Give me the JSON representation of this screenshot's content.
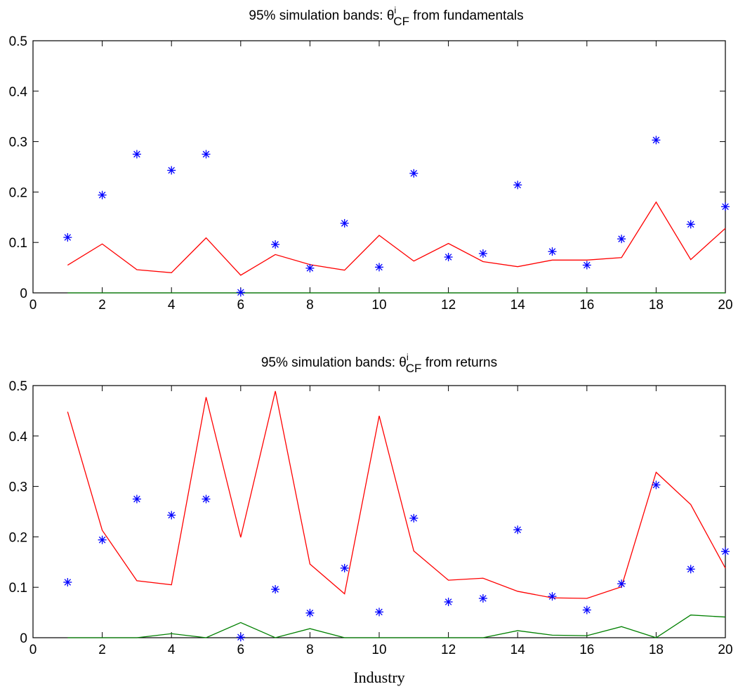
{
  "figure": {
    "xlabel": "Industry"
  },
  "chart_data": [
    {
      "type": "line",
      "title": "95% simulation bands: θ",
      "title_parts": {
        "prefix": "95% simulation bands: θ",
        "superscript": "i",
        "subscript": "CF",
        "suffix": " from fundamentals"
      },
      "xlabel": "",
      "ylabel": "",
      "xlim": [
        0,
        20
      ],
      "ylim": [
        0,
        0.5
      ],
      "xticks": [
        "0",
        "2",
        "4",
        "6",
        "8",
        "10",
        "12",
        "14",
        "16",
        "18",
        "20"
      ],
      "yticks": [
        "0",
        "0.1",
        "0.2",
        "0.3",
        "0.4",
        "0.5"
      ],
      "grid": false,
      "x": [
        1,
        2,
        3,
        4,
        5,
        6,
        7,
        8,
        9,
        10,
        11,
        12,
        13,
        14,
        15,
        16,
        17,
        18,
        19,
        20
      ],
      "series": [
        {
          "color": "#ff0000",
          "style": "line",
          "values": [
            0.055,
            0.097,
            0.046,
            0.04,
            0.109,
            0.035,
            0.076,
            0.056,
            0.045,
            0.114,
            0.063,
            0.098,
            0.062,
            0.052,
            0.065,
            0.065,
            0.07,
            0.18,
            0.066,
            0.128
          ]
        },
        {
          "color": "#008000",
          "style": "line",
          "values": [
            0,
            0,
            0,
            0,
            0,
            0,
            0,
            0,
            0,
            0,
            0,
            0,
            0,
            0,
            0,
            0,
            0,
            0,
            0,
            0
          ]
        },
        {
          "color": "#0000ff",
          "style": "markers",
          "marker": "asterisk",
          "values": [
            0.11,
            0.194,
            0.275,
            0.243,
            0.275,
            0.001,
            0.096,
            0.049,
            0.138,
            0.051,
            0.237,
            0.071,
            0.078,
            0.214,
            0.082,
            0.055,
            0.107,
            0.303,
            0.136,
            0.171
          ]
        }
      ]
    },
    {
      "type": "line",
      "title": "95% simulation bands: θ",
      "title_parts": {
        "prefix": "95% simulation bands: θ",
        "superscript": "i",
        "subscript": "CF",
        "suffix": " from returns"
      },
      "xlabel": "Industry",
      "ylabel": "",
      "xlim": [
        0,
        20
      ],
      "ylim": [
        0,
        0.5
      ],
      "xticks": [
        "0",
        "2",
        "4",
        "6",
        "8",
        "10",
        "12",
        "14",
        "16",
        "18",
        "20"
      ],
      "yticks": [
        "0",
        "0.1",
        "0.2",
        "0.3",
        "0.4",
        "0.5"
      ],
      "grid": false,
      "x": [
        1,
        2,
        3,
        4,
        5,
        6,
        7,
        8,
        9,
        10,
        11,
        12,
        13,
        14,
        15,
        16,
        17,
        18,
        19,
        20
      ],
      "series": [
        {
          "color": "#ff0000",
          "style": "line",
          "values": [
            0.448,
            0.213,
            0.113,
            0.105,
            0.477,
            0.199,
            0.489,
            0.146,
            0.087,
            0.44,
            0.172,
            0.114,
            0.118,
            0.092,
            0.079,
            0.078,
            0.101,
            0.328,
            0.264,
            0.138
          ]
        },
        {
          "color": "#008000",
          "style": "line",
          "values": [
            0,
            0,
            0,
            0.008,
            0,
            0.03,
            0,
            0.018,
            0,
            0,
            0,
            0,
            0,
            0.014,
            0.005,
            0.004,
            0.022,
            0,
            0.045,
            0.041
          ]
        },
        {
          "color": "#0000ff",
          "style": "markers",
          "marker": "asterisk",
          "values": [
            0.11,
            0.194,
            0.275,
            0.243,
            0.275,
            0.001,
            0.096,
            0.049,
            0.138,
            0.051,
            0.237,
            0.071,
            0.078,
            0.214,
            0.082,
            0.055,
            0.107,
            0.303,
            0.136,
            0.171
          ]
        }
      ]
    }
  ]
}
